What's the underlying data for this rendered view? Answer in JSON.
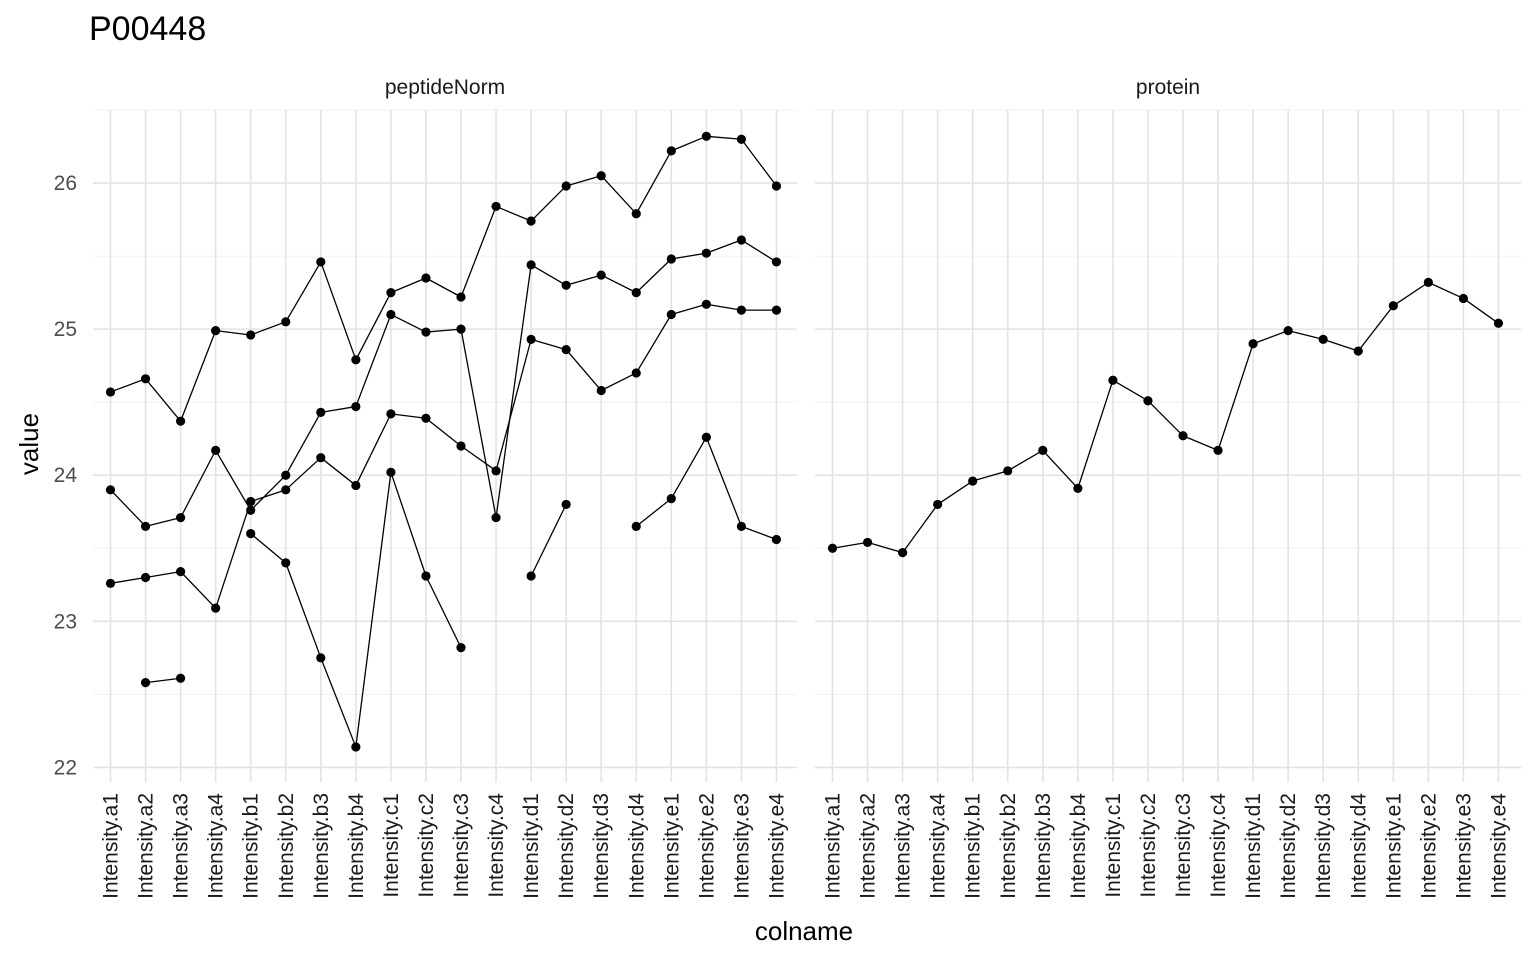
{
  "chart_data": {
    "type": "line",
    "title": "P00448",
    "xlabel": "colname",
    "ylabel": "value",
    "ylim": [
      21.9,
      26.5
    ],
    "yticks": [
      22,
      23,
      24,
      25,
      26
    ],
    "grid": true,
    "categories": [
      "Intensity.a1",
      "Intensity.a2",
      "Intensity.a3",
      "Intensity.a4",
      "Intensity.b1",
      "Intensity.b2",
      "Intensity.b3",
      "Intensity.b4",
      "Intensity.c1",
      "Intensity.c2",
      "Intensity.c3",
      "Intensity.c4",
      "Intensity.d1",
      "Intensity.d2",
      "Intensity.d3",
      "Intensity.d4",
      "Intensity.e1",
      "Intensity.e2",
      "Intensity.e3",
      "Intensity.e4"
    ],
    "panels": [
      {
        "name": "peptideNorm",
        "series": [
          {
            "values": [
              24.57,
              24.66,
              24.37,
              24.99,
              24.96,
              25.05,
              25.46,
              24.79,
              25.25,
              25.35,
              25.22,
              25.84,
              25.74,
              25.98,
              26.05,
              25.79,
              26.22,
              26.32,
              26.3,
              25.98
            ]
          },
          {
            "values": [
              23.9,
              23.65,
              23.71,
              24.17,
              23.76,
              24.0,
              24.43,
              24.47,
              25.1,
              24.98,
              25.0,
              23.71,
              25.44,
              25.3,
              25.37,
              25.25,
              25.48,
              25.52,
              25.61,
              25.46
            ]
          },
          {
            "values": [
              23.26,
              23.3,
              23.34,
              23.09,
              23.82,
              23.9,
              24.12,
              23.93,
              24.42,
              24.39,
              24.2,
              24.03,
              24.93,
              24.86,
              24.58,
              24.7,
              25.1,
              25.17,
              25.13,
              25.13
            ]
          },
          {
            "values": [
              null,
              22.58,
              22.61,
              null,
              23.6,
              23.4,
              22.75,
              22.14,
              24.02,
              23.31,
              22.82,
              null,
              23.31,
              23.8,
              null,
              23.65,
              23.84,
              24.26,
              23.65,
              23.56
            ]
          }
        ]
      },
      {
        "name": "protein",
        "series": [
          {
            "values": [
              23.5,
              23.54,
              23.47,
              23.8,
              23.96,
              24.03,
              24.17,
              23.91,
              24.65,
              24.51,
              24.27,
              24.17,
              24.9,
              24.99,
              24.93,
              24.85,
              25.16,
              25.32,
              25.21,
              25.04
            ]
          }
        ]
      }
    ]
  }
}
